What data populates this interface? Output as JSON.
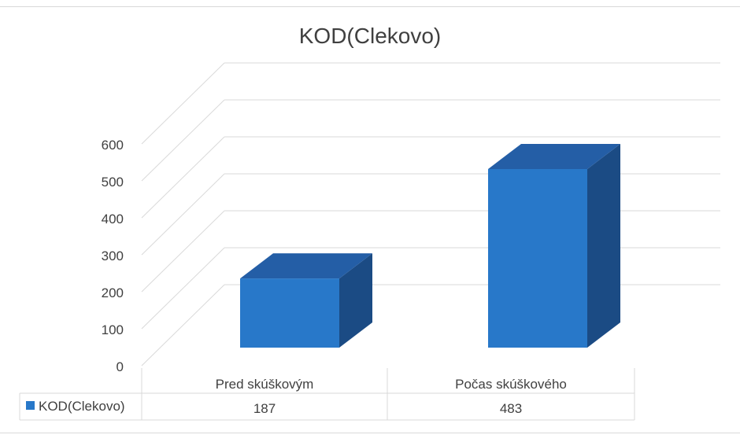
{
  "chart_data": {
    "type": "bar",
    "title": "KOD(Clekovo)",
    "categories": [
      "Pred skúškovým",
      "Počas skúškového"
    ],
    "series": [
      {
        "name": "KOD(Clekovo)",
        "values": [
          187,
          483
        ],
        "color": "#2878c9"
      }
    ],
    "value_labels": [
      "187",
      "483"
    ],
    "ylim": [
      0,
      600
    ],
    "yticks": [
      "0",
      "100",
      "200",
      "300",
      "400",
      "500",
      "600"
    ],
    "style": "3d-column",
    "grid": true,
    "legend": "data-table-bottom",
    "colors": {
      "front": "#2878c9",
      "top": "#245ea6",
      "side": "#1b4b84",
      "grid": "#d9d9d9",
      "text": "#404040"
    }
  }
}
